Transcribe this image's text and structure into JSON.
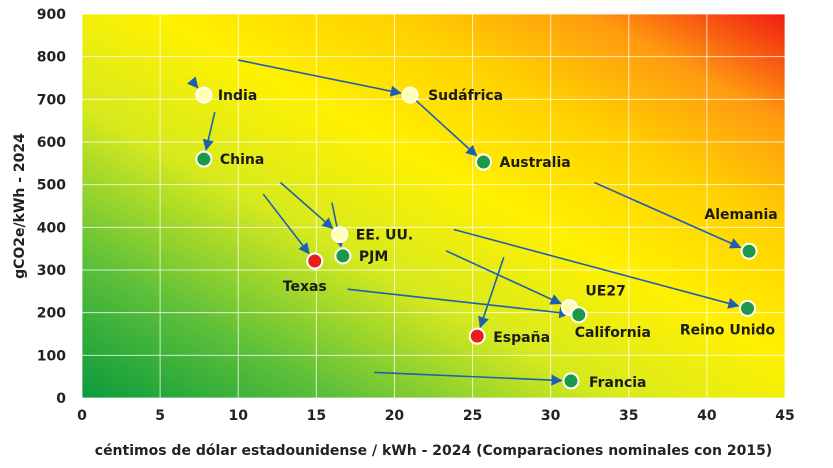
{
  "chart_data": {
    "type": "scatter",
    "xlabel": "céntimos de dólar estadounidense / kWh - 2024 (Comparaciones nominales con 2015)",
    "ylabel": "gCO2e/kWh - 2024",
    "xlim": [
      0,
      45
    ],
    "ylim": [
      0,
      900
    ],
    "x_ticks": [
      0,
      5,
      10,
      15,
      20,
      25,
      30,
      35,
      40,
      45
    ],
    "y_ticks": [
      0,
      100,
      200,
      300,
      400,
      500,
      600,
      700,
      800,
      900
    ],
    "grid": true,
    "background": "gradient green (bottom-left) to yellow to red (top-right)",
    "colors": {
      "green": "#1a9a48",
      "light": "#ffffb3",
      "red": "#e8201c",
      "arrow": "#1f5fb0"
    },
    "points": [
      {
        "label": "India",
        "x": 7.8,
        "y": 710,
        "color": "light",
        "from": [
          7,
          745
        ]
      },
      {
        "label": "China",
        "x": 7.8,
        "y": 560,
        "color": "green",
        "from": [
          8.5,
          670
        ]
      },
      {
        "label": "Sudáfrica",
        "x": 21.0,
        "y": 710,
        "color": "light",
        "from": [
          10,
          792
        ]
      },
      {
        "label": "Australia",
        "x": 25.7,
        "y": 553,
        "color": "green",
        "from": [
          21,
          710
        ]
      },
      {
        "label": "EE. UU.",
        "x": 16.5,
        "y": 383,
        "color": "light",
        "from": [
          12.7,
          505
        ]
      },
      {
        "label": "PJM",
        "x": 16.7,
        "y": 333,
        "color": "green",
        "from": [
          16,
          458
        ]
      },
      {
        "label": "Texas",
        "x": 14.9,
        "y": 321,
        "color": "red",
        "from": [
          11.6,
          478
        ]
      },
      {
        "label": "UE27",
        "x": 31.2,
        "y": 212,
        "color": "light",
        "from": [
          23.3,
          345
        ]
      },
      {
        "label": "California",
        "x": 31.8,
        "y": 195,
        "color": "green",
        "from": [
          17,
          255
        ]
      },
      {
        "label": "España",
        "x": 25.3,
        "y": 145,
        "color": "red",
        "from": [
          27,
          330
        ]
      },
      {
        "label": "Alemania",
        "x": 42.7,
        "y": 344,
        "color": "green",
        "from": [
          32.8,
          505
        ]
      },
      {
        "label": "Reino Unido",
        "x": 42.6,
        "y": 210,
        "color": "green",
        "from": [
          23.8,
          395
        ]
      },
      {
        "label": "Francia",
        "x": 31.3,
        "y": 40,
        "color": "green",
        "from": [
          18.7,
          60
        ]
      }
    ]
  }
}
